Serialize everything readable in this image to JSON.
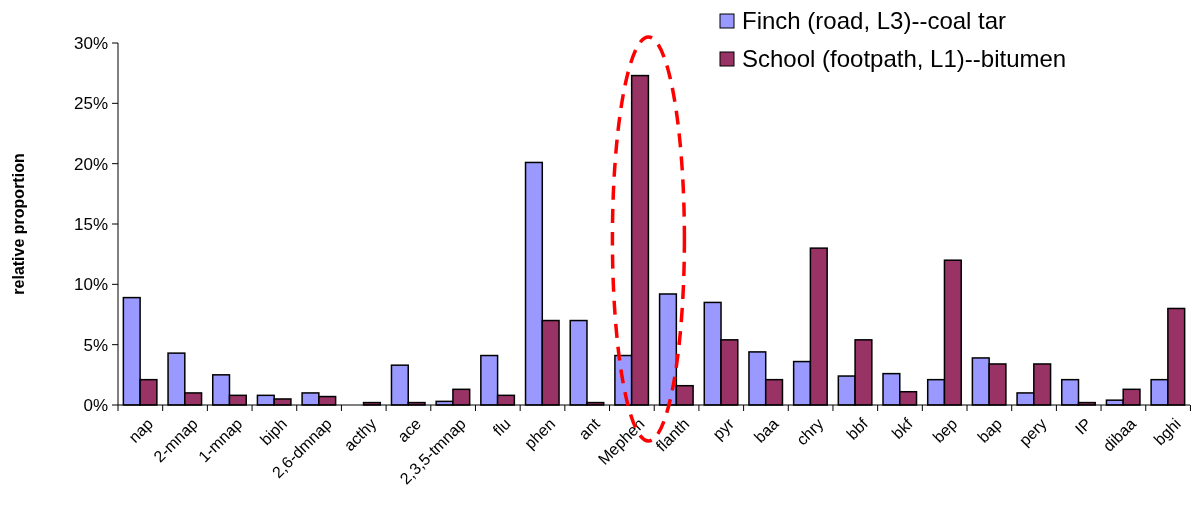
{
  "chart_data": {
    "type": "bar",
    "ylabel": "relative proportion",
    "categories": [
      "nap",
      "2-mnap",
      "1-mnap",
      "biph",
      "2,6-dmnap",
      "acthy",
      "ace",
      "2,3,5-tmnap",
      "flu",
      "phen",
      "ant",
      "Mephen",
      "flanth",
      "pyr",
      "baa",
      "chry",
      "bbf",
      "bkf",
      "bep",
      "bap",
      "pery",
      "IP",
      "dibaa",
      "bghi"
    ],
    "series": [
      {
        "name": "Finch (road, L3)--coal tar",
        "color": "#9999ff",
        "values": [
          8.9,
          4.3,
          2.5,
          0.8,
          1.0,
          0,
          3.3,
          0.3,
          4.1,
          20.1,
          7.0,
          4.1,
          9.2,
          8.5,
          4.4,
          3.6,
          2.4,
          2.6,
          2.1,
          3.9,
          1.0,
          2.1,
          0.4,
          2.1
        ]
      },
      {
        "name": "School (footpath, L1)--bitumen",
        "color": "#993366",
        "values": [
          2.1,
          1.0,
          0.8,
          0.5,
          0.7,
          0.2,
          0.2,
          1.3,
          0.8,
          7.0,
          0.2,
          27.3,
          1.6,
          5.4,
          2.1,
          13.0,
          5.4,
          1.1,
          12.0,
          3.4,
          3.4,
          0.2,
          1.3,
          8.0
        ]
      }
    ],
    "ylim": [
      0,
      30
    ],
    "yticks": [
      {
        "value": 0,
        "label": "0%"
      },
      {
        "value": 5,
        "label": "5%"
      },
      {
        "value": 10,
        "label": "10%"
      },
      {
        "value": 15,
        "label": "15%"
      },
      {
        "value": 20,
        "label": "20%"
      },
      {
        "value": 25,
        "label": "25%"
      },
      {
        "value": 30,
        "label": "30%"
      }
    ],
    "grid": false,
    "legend": "top right"
  }
}
